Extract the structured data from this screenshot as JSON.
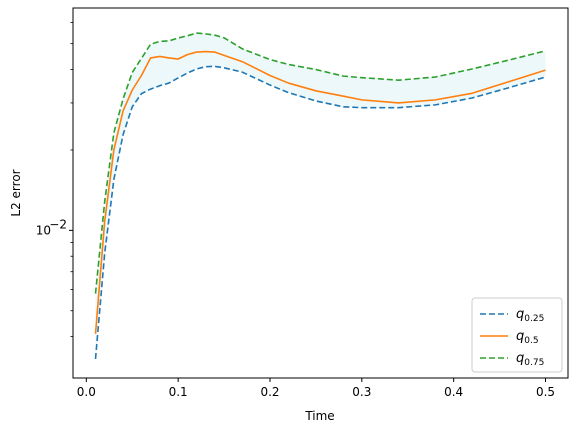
{
  "chart_data": {
    "type": "line",
    "xlabel": "Time",
    "ylabel": "L2 error",
    "xlim": [
      -0.0145,
      0.5245
    ],
    "ylim": [
      0.0028,
      0.068
    ],
    "yscale": "log",
    "xticks": [
      0.0,
      0.1,
      0.2,
      0.3,
      0.4,
      0.5
    ],
    "xtick_labels": [
      "0.0",
      "0.1",
      "0.2",
      "0.3",
      "0.4",
      "0.5"
    ],
    "yticks": [
      0.01
    ],
    "ytick_labels": [
      "10",
      "−2"
    ],
    "grid": false,
    "legend_position": "lower-right",
    "fill_between": {
      "lower": "q0.25",
      "upper": "q0.75",
      "color": "#e0f3f6"
    },
    "x": [
      0.01,
      0.02,
      0.03,
      0.04,
      0.05,
      0.06,
      0.07,
      0.08,
      0.09,
      0.1,
      0.11,
      0.12,
      0.13,
      0.14,
      0.15,
      0.17,
      0.2,
      0.22,
      0.25,
      0.28,
      0.3,
      0.34,
      0.38,
      0.42,
      0.46,
      0.5
    ],
    "series": [
      {
        "key": "q0.25",
        "name_main": "q",
        "name_sub": "0.25",
        "color": "#1f77b4",
        "dash": "6,3",
        "values": [
          0.0033,
          0.0082,
          0.0155,
          0.0228,
          0.029,
          0.0325,
          0.0338,
          0.0348,
          0.0356,
          0.0372,
          0.0388,
          0.0402,
          0.041,
          0.0411,
          0.0406,
          0.0391,
          0.035,
          0.0328,
          0.0305,
          0.029,
          0.0288,
          0.0288,
          0.0295,
          0.0313,
          0.0342,
          0.0375
        ]
      },
      {
        "key": "q0.5",
        "name_main": "q",
        "name_sub": "0.5",
        "color": "#ff7f0e",
        "dash": "",
        "values": [
          0.0041,
          0.0108,
          0.02,
          0.028,
          0.0335,
          0.038,
          0.0442,
          0.0448,
          0.0442,
          0.0438,
          0.0455,
          0.0465,
          0.0467,
          0.0465,
          0.0452,
          0.0428,
          0.038,
          0.0356,
          0.0333,
          0.0318,
          0.0308,
          0.03,
          0.0308,
          0.0326,
          0.036,
          0.0398
        ]
      },
      {
        "key": "q0.75",
        "name_main": "q",
        "name_sub": "0.75",
        "color": "#2ca02c",
        "dash": "6,3",
        "values": [
          0.0058,
          0.0128,
          0.0232,
          0.031,
          0.039,
          0.044,
          0.0498,
          0.051,
          0.0512,
          0.0525,
          0.0535,
          0.0548,
          0.0544,
          0.0538,
          0.0526,
          0.0478,
          0.0436,
          0.0418,
          0.04,
          0.0378,
          0.0373,
          0.0365,
          0.0375,
          0.0402,
          0.0434,
          0.047
        ]
      }
    ]
  }
}
